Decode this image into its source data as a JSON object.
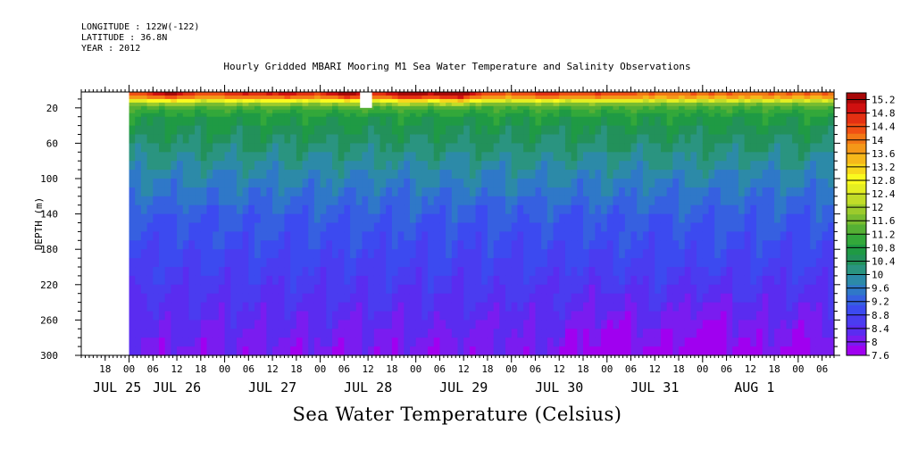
{
  "header": {
    "longitude": "LONGITUDE : 122W(-122)",
    "latitude": "LATITUDE : 36.8N",
    "year": "YEAR : 2012"
  },
  "colors": {
    "palette": [
      "#a000f0",
      "#7a1cf0",
      "#5a2cf0",
      "#4a3cf0",
      "#3c4af0",
      "#3660e0",
      "#2f78c8",
      "#2c8aa8",
      "#2a9480",
      "#22915a",
      "#1f9a44",
      "#33a83a",
      "#55b034",
      "#78bc30",
      "#9ccb2c",
      "#c2dc28",
      "#e4ee22",
      "#fafa1e",
      "#f8d81c",
      "#f6b81a",
      "#f49818",
      "#f27816",
      "#f05014",
      "#e43012",
      "#d01010",
      "#a80808"
    ]
  },
  "chart_data": {
    "type": "heatmap",
    "title": "Hourly Gridded MBARI Mooring M1 Sea Water Temperature and Salinity Observations",
    "xlabel": "",
    "ylabel": "DEPTH (m)",
    "colorbar_label": "Sea Water Temperature (Celsius)",
    "xlim_hours": [
      -12,
      177
    ],
    "ylim": [
      300,
      2
    ],
    "y_ticks": [
      20,
      60,
      100,
      140,
      180,
      220,
      260,
      300
    ],
    "x_hour_ticks": [
      {
        "h": -6,
        "label": "18"
      },
      {
        "h": 0,
        "label": "00"
      },
      {
        "h": 6,
        "label": "06"
      },
      {
        "h": 12,
        "label": "12"
      },
      {
        "h": 18,
        "label": "18"
      },
      {
        "h": 24,
        "label": "00"
      },
      {
        "h": 30,
        "label": "06"
      },
      {
        "h": 36,
        "label": "12"
      },
      {
        "h": 42,
        "label": "18"
      },
      {
        "h": 48,
        "label": "00"
      },
      {
        "h": 54,
        "label": "06"
      },
      {
        "h": 60,
        "label": "12"
      },
      {
        "h": 66,
        "label": "18"
      },
      {
        "h": 72,
        "label": "00"
      },
      {
        "h": 78,
        "label": "06"
      },
      {
        "h": 84,
        "label": "12"
      },
      {
        "h": 90,
        "label": "18"
      },
      {
        "h": 96,
        "label": "00"
      },
      {
        "h": 102,
        "label": "06"
      },
      {
        "h": 108,
        "label": "12"
      },
      {
        "h": 114,
        "label": "18"
      },
      {
        "h": 120,
        "label": "00"
      },
      {
        "h": 126,
        "label": "06"
      },
      {
        "h": 132,
        "label": "12"
      },
      {
        "h": 138,
        "label": "18"
      },
      {
        "h": 144,
        "label": "00"
      },
      {
        "h": 150,
        "label": "06"
      },
      {
        "h": 156,
        "label": "12"
      },
      {
        "h": 162,
        "label": "18"
      },
      {
        "h": 168,
        "label": "00"
      },
      {
        "h": 174,
        "label": "06"
      },
      {
        "h": 180,
        "label": "12"
      }
    ],
    "x_day_labels": [
      {
        "h": -3,
        "label": "JUL 25"
      },
      {
        "h": 12,
        "label": "JUL 26"
      },
      {
        "h": 36,
        "label": "JUL 27"
      },
      {
        "h": 60,
        "label": "JUL 28"
      },
      {
        "h": 84,
        "label": "JUL 29"
      },
      {
        "h": 108,
        "label": "JUL 30"
      },
      {
        "h": 132,
        "label": "JUL 31"
      },
      {
        "h": 157,
        "label": "AUG  1"
      }
    ],
    "data_start_hour": 0,
    "missing_block": {
      "h_start": 58,
      "h_end": 61,
      "depth_start": 2,
      "depth_end": 20
    },
    "colorbar_levels": [
      7.6,
      8,
      8.4,
      8.8,
      9.2,
      9.6,
      10,
      10.4,
      10.8,
      11.2,
      11.6,
      12,
      12.4,
      12.8,
      13.2,
      13.6,
      14,
      14.4,
      14.8,
      15.2
    ],
    "colorbar_min": 7.6,
    "colorbar_max": 15.4,
    "profile_depths": [
      2,
      8,
      12,
      16,
      20,
      30,
      40,
      60,
      80,
      100,
      140,
      180,
      220,
      260,
      300
    ],
    "profile_temps": [
      14.4,
      13.6,
      12.4,
      11.6,
      11.2,
      10.8,
      10.6,
      10.3,
      10.0,
      9.7,
      9.2,
      8.9,
      8.6,
      8.3,
      8.0
    ],
    "warm_surface_events": [
      {
        "h": 10,
        "extra": 1.2
      },
      {
        "h": 28,
        "extra": 0.8
      },
      {
        "h": 40,
        "extra": 1.0
      },
      {
        "h": 55,
        "extra": 1.4
      },
      {
        "h": 70,
        "extra": 1.6
      },
      {
        "h": 82,
        "extra": 1.8
      },
      {
        "h": 104,
        "extra": 0.6
      },
      {
        "h": 120,
        "extra": 0.4
      }
    ],
    "cold_bottom_events": [
      {
        "h": 120,
        "extra": -0.5
      },
      {
        "h": 145,
        "extra": -0.6
      },
      {
        "h": 168,
        "extra": -0.3
      }
    ]
  }
}
